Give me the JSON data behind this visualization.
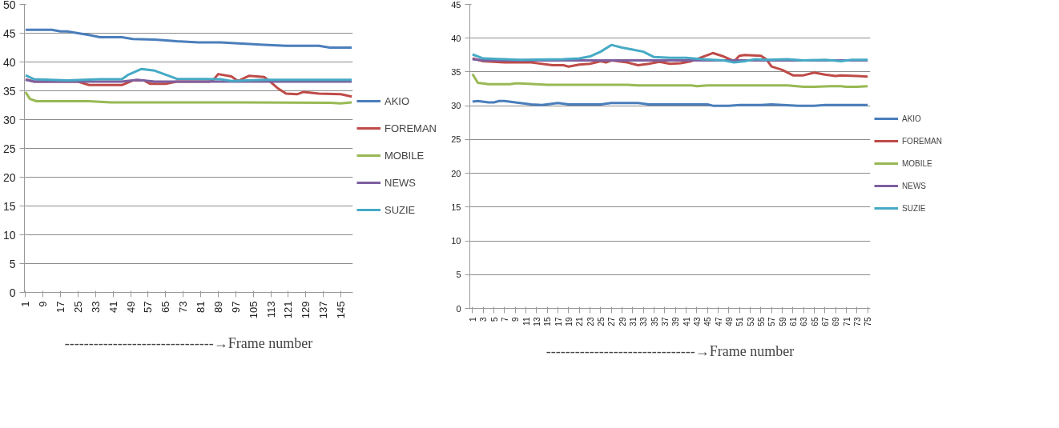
{
  "chart_data": [
    {
      "type": "line",
      "xlabel": "-------------------------------→Frame number",
      "xlim": [
        0.5,
        150.5
      ],
      "xticks": [
        1,
        9,
        17,
        25,
        33,
        41,
        49,
        57,
        65,
        73,
        81,
        89,
        97,
        105,
        113,
        121,
        129,
        137,
        145
      ],
      "ylim": [
        0,
        50
      ],
      "yticks": [
        0,
        5,
        10,
        15,
        20,
        25,
        30,
        35,
        40,
        45,
        50
      ],
      "grid": "y",
      "legend": "right",
      "marker": "none",
      "line_style": "solid",
      "series": [
        {
          "name": "AKIO",
          "color": "#4a7ebb",
          "x": [
            1,
            13,
            17,
            20,
            25,
            30,
            35,
            45,
            50,
            60,
            70,
            80,
            90,
            100,
            110,
            120,
            135,
            140,
            150
          ],
          "values": [
            45.6,
            45.6,
            45.3,
            45.3,
            45.0,
            44.7,
            44.3,
            44.3,
            44.0,
            43.9,
            43.6,
            43.4,
            43.4,
            43.2,
            43.0,
            42.8,
            42.8,
            42.5,
            42.5
          ]
        },
        {
          "name": "FOREMAN",
          "color": "#be4b48",
          "x": [
            1,
            5,
            25,
            30,
            45,
            50,
            55,
            58,
            65,
            70,
            85,
            87,
            89,
            95,
            98,
            103,
            110,
            113,
            116,
            120,
            125,
            128,
            135,
            145,
            150
          ],
          "values": [
            37.0,
            36.6,
            36.6,
            36.0,
            36.0,
            36.8,
            36.8,
            36.2,
            36.2,
            36.6,
            36.6,
            37.0,
            37.9,
            37.5,
            36.7,
            37.6,
            37.4,
            36.5,
            35.5,
            34.5,
            34.4,
            34.8,
            34.5,
            34.4,
            34.0
          ]
        },
        {
          "name": "MOBILE",
          "color": "#98b954",
          "x": [
            1,
            3,
            6,
            30,
            40,
            50,
            100,
            140,
            145,
            150
          ],
          "values": [
            34.8,
            33.6,
            33.2,
            33.2,
            33.0,
            33.0,
            33.0,
            32.9,
            32.8,
            33.0
          ]
        },
        {
          "name": "NEWS",
          "color": "#7d60a0",
          "x": [
            1,
            5,
            45,
            52,
            60,
            150
          ],
          "values": [
            36.9,
            36.6,
            36.6,
            36.9,
            36.6,
            36.6
          ]
        },
        {
          "name": "SUZIE",
          "color": "#46aac5",
          "x": [
            1,
            5,
            20,
            35,
            45,
            48,
            54,
            60,
            65,
            70,
            90,
            95,
            110,
            150
          ],
          "values": [
            37.7,
            37.0,
            36.8,
            37.0,
            37.0,
            37.8,
            38.8,
            38.5,
            37.8,
            37.1,
            37.0,
            36.7,
            36.9,
            36.9
          ]
        }
      ]
    },
    {
      "type": "line",
      "xlabel": "-------------------------------→Frame number",
      "xlim": [
        0.5,
        75.5
      ],
      "xticks": [
        1,
        3,
        5,
        7,
        9,
        11,
        13,
        15,
        17,
        19,
        21,
        23,
        25,
        27,
        29,
        31,
        33,
        35,
        37,
        39,
        41,
        43,
        45,
        47,
        49,
        51,
        53,
        55,
        57,
        59,
        61,
        63,
        65,
        67,
        69,
        71,
        73,
        75
      ],
      "ylim": [
        0,
        45
      ],
      "yticks": [
        0,
        5,
        10,
        15,
        20,
        25,
        30,
        35,
        40,
        45
      ],
      "grid": "y",
      "legend": "right",
      "marker": "none",
      "line_style": "solid",
      "series": [
        {
          "name": "AKIO",
          "color": "#4a7ebb",
          "x": [
            1,
            2,
            4,
            5,
            6,
            7,
            9,
            12,
            14,
            17,
            19,
            25,
            27,
            32,
            34,
            45,
            46,
            49,
            51,
            55,
            57,
            62,
            65,
            67,
            75
          ],
          "values": [
            30.6,
            30.7,
            30.5,
            30.5,
            30.7,
            30.7,
            30.5,
            30.2,
            30.1,
            30.4,
            30.2,
            30.2,
            30.4,
            30.4,
            30.2,
            30.2,
            30.0,
            30.0,
            30.1,
            30.1,
            30.2,
            30.0,
            30.0,
            30.1,
            30.1
          ]
        },
        {
          "name": "FOREMAN",
          "color": "#be4b48",
          "x": [
            1,
            3,
            7,
            9,
            12,
            16,
            18,
            19,
            21,
            23,
            25,
            26,
            27,
            30,
            32,
            34,
            36,
            38,
            40,
            42,
            44,
            46,
            48,
            50,
            51,
            52,
            55,
            56,
            57,
            59,
            61,
            63,
            65,
            67,
            69,
            70,
            73,
            75
          ],
          "values": [
            37.0,
            36.6,
            36.4,
            36.4,
            36.4,
            36.0,
            36.0,
            35.8,
            36.1,
            36.2,
            36.6,
            36.4,
            36.7,
            36.4,
            36.0,
            36.2,
            36.5,
            36.2,
            36.3,
            36.6,
            37.2,
            37.8,
            37.3,
            36.6,
            37.4,
            37.5,
            37.4,
            36.9,
            35.8,
            35.3,
            34.5,
            34.5,
            34.9,
            34.6,
            34.4,
            34.5,
            34.4,
            34.3
          ]
        },
        {
          "name": "MOBILE",
          "color": "#98b954",
          "x": [
            1,
            2,
            4,
            8,
            9,
            10,
            15,
            30,
            32,
            42,
            43,
            45,
            60,
            63,
            65,
            68,
            70,
            71,
            73,
            75
          ],
          "values": [
            34.7,
            33.4,
            33.2,
            33.2,
            33.3,
            33.3,
            33.1,
            33.1,
            33.0,
            33.0,
            32.9,
            33.0,
            33.0,
            32.8,
            32.8,
            32.9,
            32.9,
            32.8,
            32.8,
            32.9
          ]
        },
        {
          "name": "NEWS",
          "color": "#7d60a0",
          "x": [
            1,
            3,
            75
          ],
          "values": [
            36.9,
            36.7,
            36.7
          ]
        },
        {
          "name": "SUZIE",
          "color": "#46aac5",
          "x": [
            1,
            3,
            10,
            18,
            21,
            23,
            25,
            27,
            29,
            31,
            33,
            35,
            38,
            41,
            44,
            46,
            48,
            50,
            52,
            54,
            56,
            60,
            63,
            67,
            70,
            72,
            75
          ],
          "values": [
            37.6,
            37.0,
            36.8,
            36.9,
            37.0,
            37.3,
            38.0,
            39.0,
            38.6,
            38.3,
            38.0,
            37.2,
            37.1,
            37.1,
            36.9,
            36.8,
            36.7,
            36.4,
            36.6,
            36.9,
            36.8,
            36.9,
            36.7,
            36.8,
            36.6,
            36.8,
            36.8
          ]
        }
      ]
    }
  ]
}
